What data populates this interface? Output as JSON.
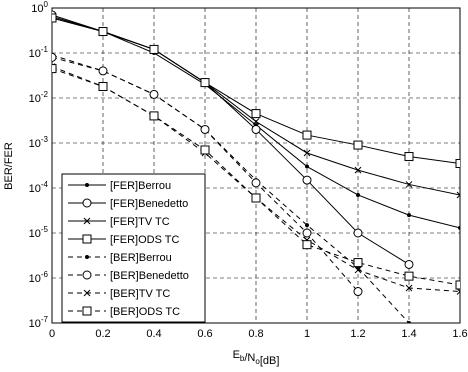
{
  "chart_data": {
    "type": "line",
    "x_label": "E_b/N_o[dB]",
    "y_label": "BER/FER",
    "log_y": true,
    "grid": true,
    "legend_position": "lower left",
    "x": [
      0,
      0.2,
      0.4,
      0.6,
      0.8,
      1.0,
      1.2,
      1.4,
      1.6
    ],
    "xlim": [
      0,
      1.6
    ],
    "xticks": [
      0,
      0.2,
      0.4,
      0.6,
      0.8,
      1,
      1.2,
      1.4,
      1.6
    ],
    "ylim": [
      1e-07,
      1
    ],
    "yticks": [
      {
        "value": 1e-07,
        "label": "10^-7"
      },
      {
        "value": 1e-06,
        "label": "10^-6"
      },
      {
        "value": 1e-05,
        "label": "10^-5"
      },
      {
        "value": 0.0001,
        "label": "10^-4"
      },
      {
        "value": 0.001,
        "label": "10^-3"
      },
      {
        "value": 0.01,
        "label": "10^-2"
      },
      {
        "value": 0.1,
        "label": "10^-1"
      },
      {
        "value": 1,
        "label": "10^0"
      }
    ],
    "series": [
      {
        "name": "[FER]Berrou",
        "color": "#000000",
        "dash": false,
        "marker": "dot",
        "values": [
          0.65,
          0.3,
          0.1,
          0.02,
          0.0025,
          0.0003,
          7e-05,
          2.5e-05,
          1.3e-05
        ]
      },
      {
        "name": "[FER]Benedetto",
        "color": "#000000",
        "dash": false,
        "marker": "circle",
        "values": [
          0.7,
          0.3,
          0.12,
          0.022,
          0.002,
          0.00015,
          1e-05,
          2e-06,
          null
        ]
      },
      {
        "name": "[FER]TV TC",
        "color": "#000000",
        "dash": false,
        "marker": "x",
        "values": [
          0.6,
          0.3,
          0.12,
          0.022,
          0.003,
          0.0006,
          0.00025,
          0.00012,
          7e-05
        ]
      },
      {
        "name": "[FER]ODS TC",
        "color": "#000000",
        "dash": false,
        "marker": "square",
        "values": [
          0.6,
          0.3,
          0.12,
          0.022,
          0.0045,
          0.0015,
          0.0009,
          0.0005,
          0.00035
        ]
      },
      {
        "name": "[BER]Berrou",
        "color": "#000000",
        "dash": true,
        "marker": "dot",
        "values": [
          0.09,
          0.04,
          0.012,
          0.002,
          0.00015,
          1.5e-05,
          1.7e-06,
          1e-07,
          null
        ]
      },
      {
        "name": "[BER]Benedetto",
        "color": "#000000",
        "dash": true,
        "marker": "circle",
        "values": [
          0.08,
          0.04,
          0.012,
          0.002,
          0.00013,
          1e-05,
          5e-07,
          null,
          null
        ]
      },
      {
        "name": "[BER]TV TC",
        "color": "#000000",
        "dash": true,
        "marker": "x",
        "values": [
          0.05,
          0.018,
          0.004,
          0.0006,
          6e-05,
          7e-06,
          1.5e-06,
          6e-07,
          5e-07
        ]
      },
      {
        "name": "[BER]ODS TC",
        "color": "#000000",
        "dash": true,
        "marker": "square",
        "values": [
          0.045,
          0.018,
          0.004,
          0.0007,
          6e-05,
          5.5e-06,
          2.2e-06,
          1.1e-06,
          7e-07
        ]
      }
    ]
  }
}
